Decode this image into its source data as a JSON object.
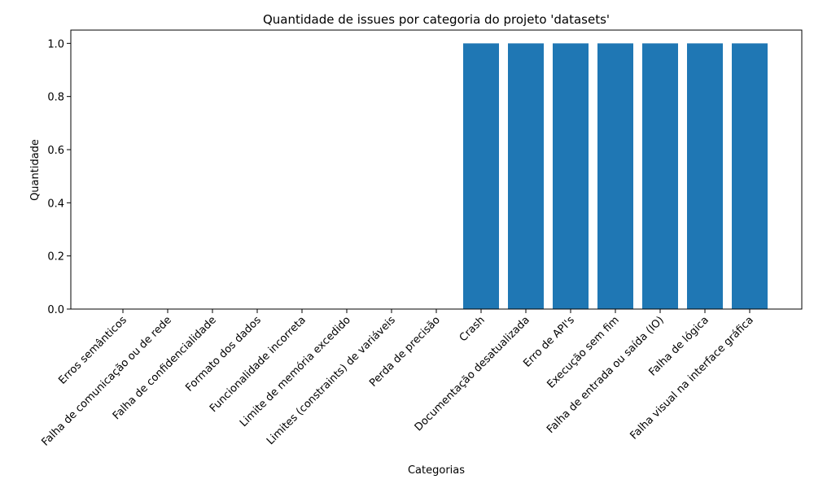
{
  "chart_data": {
    "type": "bar",
    "title": "Quantidade de issues por categoria do projeto 'datasets'",
    "xlabel": "Categorias",
    "ylabel": "Quantidade",
    "categories": [
      "Erros semânticos",
      "Falha de comunicação ou de rede",
      "Falha de confidencialidade",
      "Formato dos dados",
      "Funcionalidade incorreta",
      "Limite de memória excedido",
      "Limites (constraints) de variáveis",
      "Perda de precisão",
      "Crash",
      "Documentação desatualizada",
      "Erro de API's",
      "Execução sem fim",
      "Falha de entrada ou saída (IO)",
      "Falha de lógica",
      "Falha visual na interface gráfica"
    ],
    "values": [
      0,
      0,
      0,
      0,
      0,
      0,
      0,
      0,
      1,
      1,
      1,
      1,
      1,
      1,
      1
    ],
    "ylim": [
      0,
      1.05
    ],
    "yticks": [
      "0.0",
      "0.2",
      "0.4",
      "0.6",
      "0.8",
      "1.0"
    ],
    "bar_color": "#1f77b4",
    "grid": false
  }
}
